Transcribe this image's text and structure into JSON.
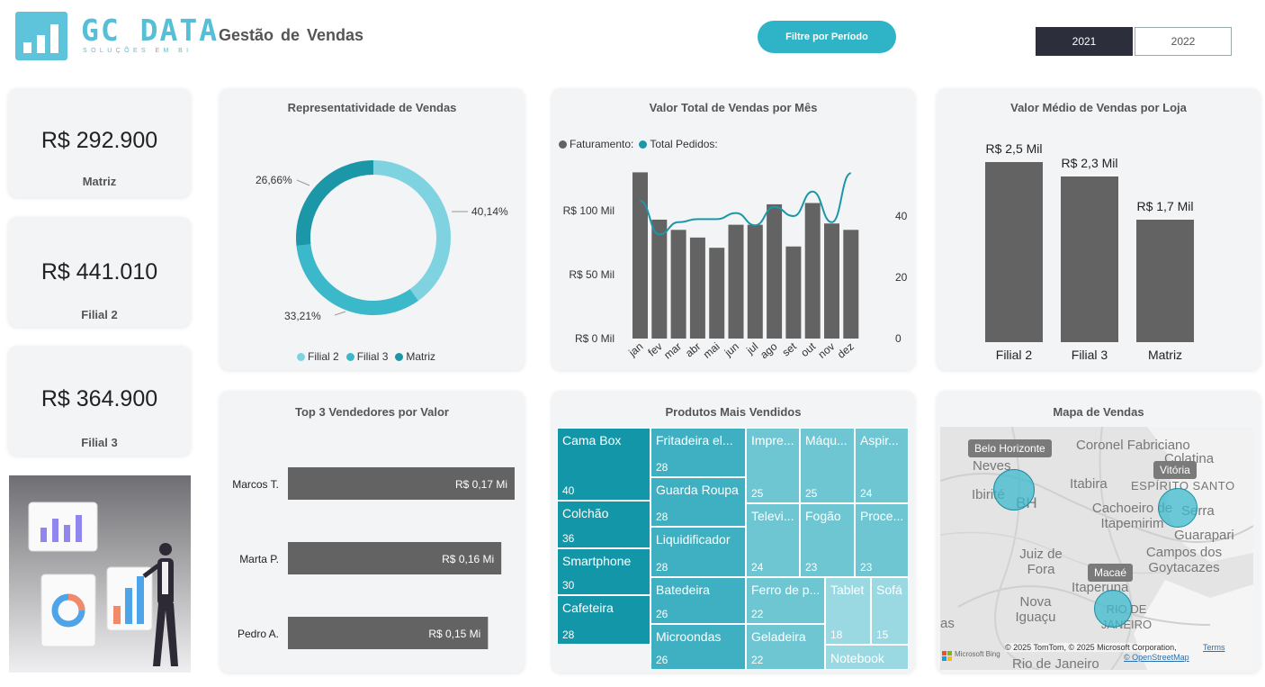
{
  "header": {
    "logo_title": "GC DATA",
    "logo_subtitle": "SOLUÇÕES EM BI",
    "page_title": "Gestão  de  Vendas",
    "filter_button": "Filtre por Período",
    "years": [
      "2021",
      "2022"
    ],
    "selected_year": "2021"
  },
  "kpis": [
    {
      "value": "R$ 292.900",
      "label": "Matriz"
    },
    {
      "value": "R$ 441.010",
      "label": "Filial 2"
    },
    {
      "value": "R$ 364.900",
      "label": "Filial 3"
    }
  ],
  "colors": {
    "dark_bar": "#636363",
    "filial2": "#7fd3e0",
    "filial3": "#3bb8c9",
    "matriz": "#1b97a8",
    "line": "#1b97a8",
    "treemap_dark": "#1397a8",
    "treemap_light": "#6ec6d2"
  },
  "donut": {
    "title": "Representatividade de Vendas",
    "labels": [
      "40,14%",
      "33,21%",
      "26,66%"
    ],
    "legend": [
      "Filial 2",
      "Filial 3",
      "Matriz"
    ]
  },
  "monthly": {
    "title": "Valor Total de   Vendas  por Mês",
    "legend": [
      "Faturamento:",
      "Total Pedidos:"
    ],
    "left_ticks": [
      "R$ 100 Mil",
      "R$ 50 Mil",
      "R$ 0 Mil"
    ],
    "right_ticks": [
      "40",
      "20",
      "0"
    ]
  },
  "avg": {
    "title": "Valor  Médio  de Vendas   por  Loja"
  },
  "sellers": {
    "title": "Top 3 Vendedores por Valor"
  },
  "chart_data": [
    {
      "type": "pie",
      "title": "Representatividade de Vendas",
      "categories": [
        "Filial 2",
        "Filial 3",
        "Matriz"
      ],
      "values": [
        40.14,
        33.21,
        26.66
      ]
    },
    {
      "type": "bar",
      "title": "Valor Total de   Vendas  por Mês",
      "categories": [
        "jan",
        "fev",
        "mar",
        "abr",
        "mai",
        "jun",
        "jul",
        "ago",
        "set",
        "out",
        "nov",
        "dez"
      ],
      "series": [
        {
          "name": "Faturamento:",
          "type": "bar",
          "axis": "left",
          "values": [
            130,
            93,
            85,
            79,
            71,
            89,
            89,
            105,
            72,
            106,
            90,
            85
          ]
        },
        {
          "name": "Total Pedidos:",
          "type": "line",
          "axis": "right",
          "values": [
            45,
            34,
            38,
            39,
            39,
            41,
            37,
            43,
            40,
            48,
            38,
            54
          ]
        }
      ],
      "ylim": [
        0,
        140
      ],
      "y2lim": [
        0,
        56
      ]
    },
    {
      "type": "bar",
      "title": "Valor  Médio  de Vendas   por  Loja",
      "categories": [
        "Filial 2",
        "Filial 3",
        "Matriz"
      ],
      "values": [
        2.5,
        2.3,
        1.7
      ],
      "value_labels": [
        "R$ 2,5 Mil",
        "R$ 2,3 Mil",
        "R$ 1,7 Mil"
      ],
      "ylim": [
        0,
        2.9
      ]
    },
    {
      "type": "bar",
      "title": "Top 3 Vendedores por Valor",
      "orientation": "horizontal",
      "categories": [
        "Marcos T.",
        "Marta P.",
        "Pedro A."
      ],
      "values": [
        0.17,
        0.16,
        0.15
      ],
      "value_labels": [
        "R$ 0,17 Mi",
        "R$ 0,16 Mi",
        "R$ 0,15 Mi"
      ],
      "xlim": [
        0,
        0.17
      ]
    }
  ],
  "treemap": {
    "title": "Produtos Mais Vendidos",
    "items": [
      {
        "name": "Cama Box",
        "value": "40"
      },
      {
        "name": "Colchão",
        "value": "36"
      },
      {
        "name": "Smartphone",
        "value": "30"
      },
      {
        "name": "Cafeteira",
        "value": "28"
      },
      {
        "name": "Fritadeira el...",
        "value": "28"
      },
      {
        "name": "Guarda Roupa",
        "value": "28"
      },
      {
        "name": "Liquidificador",
        "value": "28"
      },
      {
        "name": "Batedeira",
        "value": "26"
      },
      {
        "name": "Microondas",
        "value": "26"
      },
      {
        "name": "Impre...",
        "value": "25"
      },
      {
        "name": "Máqu...",
        "value": "25"
      },
      {
        "name": "Aspir...",
        "value": "24"
      },
      {
        "name": "Televi...",
        "value": "24"
      },
      {
        "name": "Fogão",
        "value": "23"
      },
      {
        "name": "Proce...",
        "value": "23"
      },
      {
        "name": "Ferro de p...",
        "value": "22"
      },
      {
        "name": "Geladeira",
        "value": "22"
      },
      {
        "name": "Tablet",
        "value": "18"
      },
      {
        "name": "Sofá",
        "value": "15"
      },
      {
        "name": "Notebook",
        "value": ""
      }
    ]
  },
  "map": {
    "title": "Mapa de Vendas",
    "place_labels": [
      "Coronel Fabriciano",
      "Colatina",
      "Ribeirão das Neves",
      "Ibirité",
      "BH",
      "Itabira",
      "ESPÍRITO SANTO",
      "Serra",
      "Cachoeiro de Itapemirim",
      "Guarapari",
      "Juiz de Fora",
      "Campos dos Goytacazes",
      "Itaperuna",
      "Nova Iguaçu",
      "RIO DE JANEIRO",
      "Rio de Janeiro",
      "as"
    ],
    "tags": [
      "Belo Horizonte",
      "Vitória",
      "Macaé"
    ],
    "attribution": "© 2025 TomTom, © 2025 Microsoft Corporation,",
    "terms": "Terms",
    "osm": "© OpenStreetMap",
    "bing": "Microsoft Bing"
  }
}
